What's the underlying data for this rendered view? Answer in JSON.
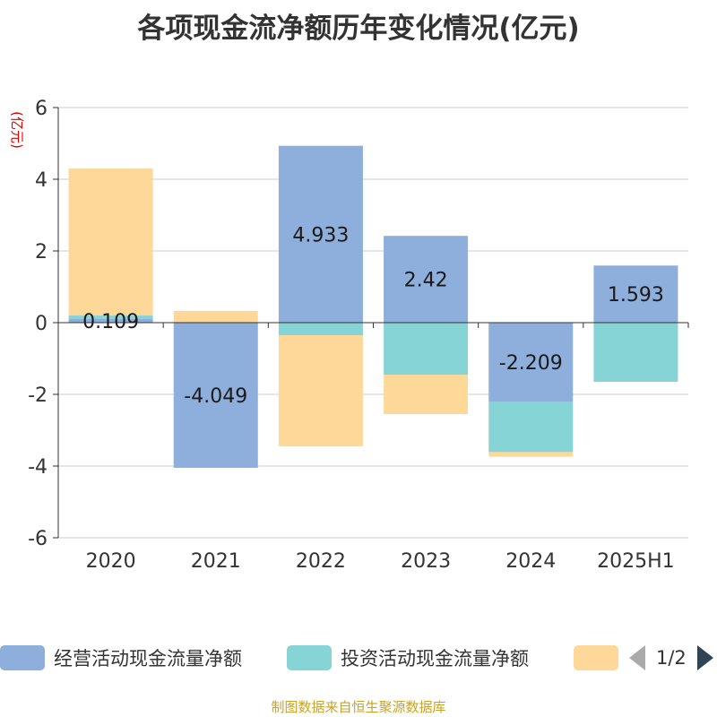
{
  "chart_data": {
    "type": "bar",
    "stacked": true,
    "title": "各项现金流净额历年变化情况(亿元)",
    "ylabel": "(亿元)",
    "categories": [
      "2020",
      "2021",
      "2022",
      "2023",
      "2024",
      "2025H1"
    ],
    "ylim": [
      -6,
      6
    ],
    "yticks": [
      -6,
      -4,
      -2,
      0,
      2,
      4,
      6
    ],
    "grid": true,
    "series": [
      {
        "name": "经营活动现金流量净额",
        "color": "#8eaedb",
        "values": [
          0.109,
          -4.049,
          4.933,
          2.42,
          -2.209,
          1.593
        ],
        "labels": [
          "0.109",
          "-4.049",
          "4.933",
          "2.42",
          "-2.209",
          "1.593"
        ]
      },
      {
        "name": "投资活动现金流量净额",
        "color": "#86d4d6",
        "values": [
          0.09,
          0.0,
          -0.35,
          -1.45,
          -1.4,
          -1.65
        ]
      },
      {
        "color": "#fdd899",
        "values": [
          4.1,
          0.33,
          -3.1,
          -1.1,
          -0.13,
          0.0
        ]
      }
    ],
    "legend_position": "bottom",
    "legend_pager": "1/2"
  },
  "source_note": "制图数据来自恒生聚源数据库"
}
